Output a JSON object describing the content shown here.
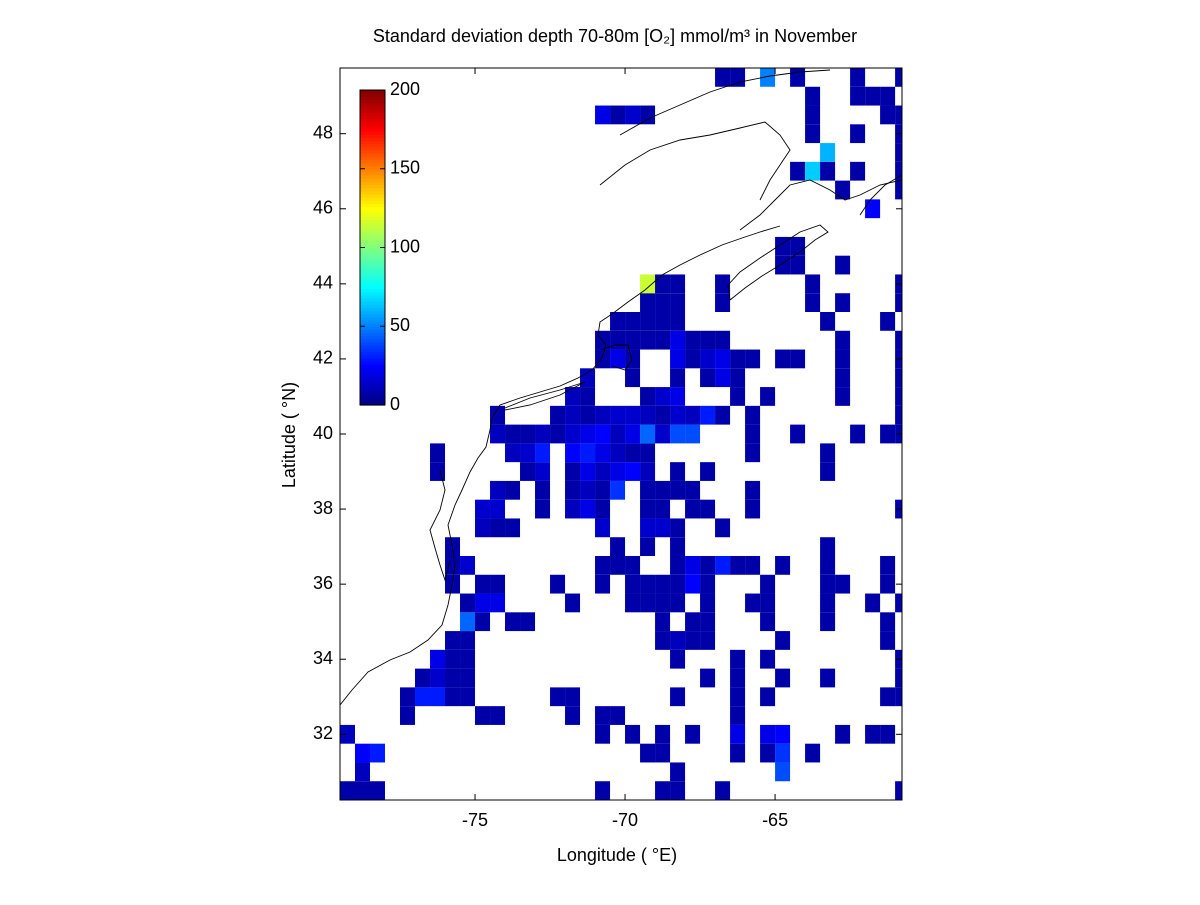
{
  "chart_data": {
    "type": "heatmap",
    "title": "Standard deviation depth 70-80m [O₂] mmol/m³ in November",
    "xlabel": "Longitude ( °E)",
    "ylabel": "Latitude ( °N)",
    "xlim": [
      -79.5,
      -60.77
    ],
    "ylim": [
      30.25,
      49.75
    ],
    "xticks": [
      -75,
      -70,
      -65
    ],
    "yticks": [
      32,
      34,
      36,
      38,
      40,
      42,
      44,
      46,
      48
    ],
    "colormap": "jet",
    "clim": [
      0,
      200
    ],
    "cticks": [
      0,
      50,
      100,
      150,
      200
    ],
    "rows": [
      {
        "lat": 30.5,
        "lon": [
          -79.25,
          -78.75,
          -78.25,
          -70.75,
          -68.75,
          -68.25,
          -66.75,
          -60.75
        ],
        "values": [
          8,
          8,
          8,
          8,
          8,
          8,
          8,
          8
        ]
      },
      {
        "lat": 31,
        "lon": [
          -78.75,
          -68.25,
          -64.75
        ],
        "values": [
          12,
          8,
          40
        ]
      },
      {
        "lat": 31.5,
        "lon": [
          -78.75,
          -78.25,
          -69.25,
          -68.75,
          -66.25,
          -65.25,
          -64.75,
          -63.75
        ],
        "values": [
          25,
          30,
          8,
          8,
          8,
          8,
          35,
          8
        ]
      },
      {
        "lat": 32,
        "lon": [
          -79.25,
          -70.75,
          -69.75,
          -68.75,
          -67.75,
          -66.25,
          -65.25,
          -64.75,
          -62.75,
          -61.75,
          -61.25
        ],
        "values": [
          12,
          8,
          8,
          8,
          8,
          20,
          20,
          25,
          8,
          8,
          8
        ]
      },
      {
        "lat": 32.5,
        "lon": [
          -77.25,
          -74.75,
          -74.25,
          -71.75,
          -70.75,
          -70.25,
          -66.25
        ],
        "values": [
          8,
          8,
          8,
          8,
          8,
          8,
          8
        ]
      },
      {
        "lat": 33,
        "lon": [
          -77.25,
          -76.75,
          -76.25,
          -75.75,
          -75.25,
          -72.25,
          -71.75,
          -68.25,
          -66.25,
          -65.25,
          -61.25,
          -60.75
        ],
        "values": [
          8,
          30,
          30,
          8,
          8,
          8,
          8,
          8,
          8,
          8,
          8,
          8
        ]
      },
      {
        "lat": 33.5,
        "lon": [
          -76.75,
          -76.25,
          -75.75,
          -75.25,
          -67.25,
          -66.25,
          -64.75,
          -63.25,
          -60.75
        ],
        "values": [
          8,
          15,
          8,
          8,
          8,
          8,
          8,
          8,
          8
        ]
      },
      {
        "lat": 34,
        "lon": [
          -76.25,
          -75.75,
          -75.25,
          -68.25,
          -66.25,
          -65.25,
          -60.75
        ],
        "values": [
          20,
          8,
          8,
          8,
          8,
          8,
          8
        ]
      },
      {
        "lat": 34.5,
        "lon": [
          -75.75,
          -75.25,
          -68.75,
          -68.25,
          -67.75,
          -67.25,
          -64.75,
          -61.25
        ],
        "values": [
          8,
          8,
          8,
          12,
          8,
          8,
          8,
          8
        ]
      },
      {
        "lat": 35,
        "lon": [
          -75.25,
          -74.75,
          -73.75,
          -73.25,
          -68.75,
          -67.75,
          -67.25,
          -65.25,
          -63.25,
          -61.25
        ],
        "values": [
          45,
          8,
          8,
          8,
          8,
          8,
          8,
          8,
          8,
          8
        ]
      },
      {
        "lat": 35.5,
        "lon": [
          -75.25,
          -74.75,
          -74.25,
          -71.75,
          -69.75,
          -69.25,
          -68.75,
          -68.25,
          -67.25,
          -65.75,
          -65.25,
          -63.25,
          -61.75,
          -60.75
        ],
        "values": [
          8,
          20,
          20,
          8,
          8,
          8,
          8,
          8,
          8,
          8,
          8,
          8,
          8,
          8
        ]
      },
      {
        "lat": 36,
        "lon": [
          -75.75,
          -74.75,
          -74.25,
          -72.25,
          -70.75,
          -69.75,
          -69.25,
          -68.75,
          -68.25,
          -67.75,
          -67.25,
          -65.25,
          -63.25,
          -62.75,
          -61.25
        ],
        "values": [
          8,
          8,
          8,
          8,
          8,
          8,
          8,
          8,
          8,
          25,
          8,
          8,
          8,
          8,
          8
        ]
      },
      {
        "lat": 36.5,
        "lon": [
          -75.75,
          -75.25,
          -70.75,
          -70.25,
          -69.75,
          -68.25,
          -67.75,
          -67.25,
          -66.75,
          -66.25,
          -65.75,
          -64.75,
          -63.25,
          -61.25
        ],
        "values": [
          8,
          15,
          8,
          8,
          8,
          8,
          20,
          8,
          30,
          8,
          8,
          8,
          8,
          8
        ]
      },
      {
        "lat": 37,
        "lon": [
          -75.75,
          -70.25,
          -69.25,
          -68.25,
          -63.25
        ],
        "values": [
          8,
          8,
          8,
          8,
          8
        ]
      },
      {
        "lat": 37.5,
        "lon": [
          -74.75,
          -74.25,
          -73.75,
          -70.75,
          -69.25,
          -68.75,
          -68.25,
          -66.75
        ],
        "values": [
          12,
          8,
          8,
          15,
          15,
          15,
          8,
          8
        ]
      },
      {
        "lat": 38,
        "lon": [
          -74.75,
          -74.25,
          -72.75,
          -71.75,
          -71.25,
          -70.75,
          -69.25,
          -68.75,
          -67.75,
          -67.25,
          -65.75,
          -60.75
        ],
        "values": [
          15,
          15,
          8,
          12,
          20,
          8,
          8,
          8,
          8,
          8,
          8,
          8
        ]
      },
      {
        "lat": 38.5,
        "lon": [
          -74.25,
          -73.75,
          -72.75,
          -71.75,
          -71.25,
          -70.75,
          -70.25,
          -69.25,
          -68.75,
          -68.25,
          -67.75,
          -65.75
        ],
        "values": [
          12,
          8,
          8,
          8,
          12,
          8,
          35,
          8,
          8,
          8,
          8,
          8
        ]
      },
      {
        "lat": 39,
        "lon": [
          -76.25,
          -73.25,
          -72.75,
          -71.75,
          -71.25,
          -70.75,
          -70.25,
          -69.75,
          -69.25,
          -68.25,
          -67.25,
          -63.25
        ],
        "values": [
          8,
          8,
          15,
          8,
          20,
          12,
          20,
          25,
          12,
          8,
          8,
          8
        ]
      },
      {
        "lat": 39.5,
        "lon": [
          -76.25,
          -73.75,
          -73.25,
          -72.75,
          -71.75,
          -71.25,
          -70.75,
          -70.25,
          -69.75,
          -69.25,
          -65.75,
          -63.25
        ],
        "values": [
          8,
          12,
          15,
          30,
          25,
          30,
          20,
          12,
          8,
          8,
          8,
          8
        ]
      },
      {
        "lat": 40,
        "lon": [
          -74.25,
          -73.75,
          -73.25,
          -72.75,
          -72.25,
          -71.75,
          -71.25,
          -70.75,
          -70.25,
          -69.75,
          -69.25,
          -68.75,
          -68.25,
          -67.75,
          -65.75,
          -64.25,
          -62.25,
          -61.25,
          -60.75
        ],
        "values": [
          12,
          8,
          8,
          12,
          8,
          15,
          20,
          25,
          12,
          20,
          45,
          15,
          40,
          40,
          8,
          8,
          8,
          8,
          8
        ]
      },
      {
        "lat": 40.5,
        "lon": [
          -74.25,
          -72.25,
          -71.75,
          -71.25,
          -70.75,
          -70.25,
          -69.75,
          -69.25,
          -68.75,
          -68.25,
          -67.75,
          -67.25,
          -66.75,
          -65.75,
          -60.75
        ],
        "values": [
          8,
          8,
          12,
          8,
          12,
          15,
          15,
          12,
          8,
          15,
          12,
          30,
          8,
          8,
          8
        ]
      },
      {
        "lat": 41,
        "lon": [
          -71.75,
          -71.25,
          -69.25,
          -68.75,
          -68.25,
          -66.25,
          -65.25,
          -62.75,
          -60.75
        ],
        "values": [
          12,
          8,
          8,
          15,
          20,
          8,
          8,
          8,
          8
        ]
      },
      {
        "lat": 41.5,
        "lon": [
          -71.25,
          -69.75,
          -68.25,
          -67.25,
          -66.75,
          -66.25,
          -62.75,
          -60.75
        ],
        "values": [
          12,
          8,
          8,
          8,
          20,
          8,
          8,
          8
        ]
      },
      {
        "lat": 42,
        "lon": [
          -70.75,
          -70.25,
          -69.75,
          -68.25,
          -67.75,
          -67.25,
          -66.75,
          -66.25,
          -65.75,
          -64.75,
          -64.25,
          -62.75,
          -60.75
        ],
        "values": [
          8,
          20,
          8,
          20,
          8,
          15,
          20,
          8,
          8,
          8,
          8,
          8,
          8
        ]
      },
      {
        "lat": 42.5,
        "lon": [
          -70.75,
          -70.25,
          -69.75,
          -69.25,
          -68.75,
          -68.25,
          -67.75,
          -67.25,
          -66.75,
          -62.75,
          -60.75
        ],
        "values": [
          8,
          8,
          8,
          8,
          8,
          20,
          8,
          8,
          8,
          8,
          8
        ]
      },
      {
        "lat": 43,
        "lon": [
          -70.25,
          -69.75,
          -69.25,
          -68.75,
          -68.25,
          -63.25,
          -61.25
        ],
        "values": [
          8,
          8,
          8,
          8,
          8,
          8,
          8
        ]
      },
      {
        "lat": 43.5,
        "lon": [
          -69.25,
          -68.75,
          -68.25,
          -66.75,
          -63.75,
          -62.75,
          -60.75
        ],
        "values": [
          8,
          8,
          8,
          8,
          8,
          8,
          8
        ]
      },
      {
        "lat": 44,
        "lon": [
          -69.25,
          -68.75,
          -68.25,
          -66.75,
          -63.75,
          -60.75
        ],
        "values": [
          115,
          8,
          8,
          8,
          8,
          8
        ]
      },
      {
        "lat": 44.5,
        "lon": [
          -64.75,
          -64.25,
          -62.75
        ],
        "values": [
          8,
          8,
          8
        ]
      },
      {
        "lat": 45,
        "lon": [
          -64.75,
          -64.25
        ],
        "values": [
          8,
          8
        ]
      },
      {
        "lat": 46,
        "lon": [
          -61.75
        ],
        "values": [
          25
        ]
      },
      {
        "lat": 46.5,
        "lon": [
          -62.75,
          -60.75
        ],
        "values": [
          8,
          8
        ]
      },
      {
        "lat": 47,
        "lon": [
          -64.25,
          -63.75,
          -63.25,
          -62.25,
          -60.75
        ],
        "values": [
          8,
          65,
          8,
          8,
          8
        ]
      },
      {
        "lat": 47.5,
        "lon": [
          -63.25,
          -60.75
        ],
        "values": [
          60,
          8
        ]
      },
      {
        "lat": 48,
        "lon": [
          -63.75,
          -62.25,
          -60.75
        ],
        "values": [
          8,
          8,
          8
        ]
      },
      {
        "lat": 48.5,
        "lon": [
          -70.75,
          -70.25,
          -69.75,
          -69.25,
          -63.75,
          -61.25,
          -60.75
        ],
        "values": [
          20,
          8,
          15,
          8,
          8,
          8,
          8
        ]
      },
      {
        "lat": 49,
        "lon": [
          -63.75,
          -62.25,
          -61.75,
          -61.25
        ],
        "values": [
          8,
          8,
          8,
          8
        ]
      },
      {
        "lat": 49.5,
        "lon": [
          -66.75,
          -66.25,
          -65.25,
          -64.25,
          -62.25,
          -60.75
        ],
        "values": [
          8,
          8,
          50,
          8,
          8,
          8
        ]
      }
    ]
  }
}
